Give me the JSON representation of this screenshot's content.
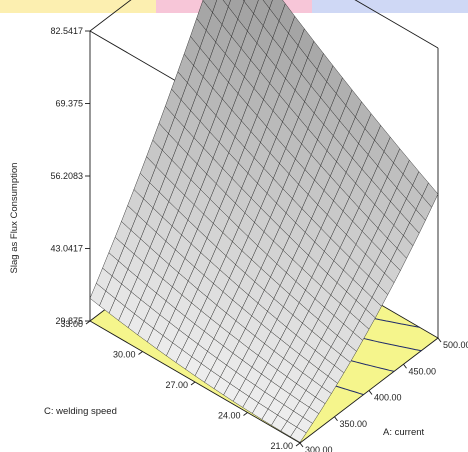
{
  "chart_data": {
    "type": "surface3d",
    "title": "",
    "zlabel": "Slag as Flux Consumption",
    "xlabel": "A: current",
    "ylabel": "C: welding speed",
    "x_ticks": [
      "300.00",
      "350.00",
      "400.00",
      "450.00",
      "500.00"
    ],
    "y_ticks": [
      "21.00",
      "24.00",
      "27.00",
      "30.00",
      "33.00"
    ],
    "z_ticks": [
      "29.875",
      "43.0417",
      "56.2083",
      "69.375",
      "82.5417"
    ],
    "x_range": [
      300,
      500
    ],
    "y_range": [
      21,
      33
    ],
    "z_range": [
      29.875,
      82.5417
    ],
    "corner_values": [
      {
        "current": 300,
        "welding_speed": 21,
        "slag": 30
      },
      {
        "current": 500,
        "welding_speed": 21,
        "slag": 56
      },
      {
        "current": 300,
        "welding_speed": 33,
        "slag": 34
      },
      {
        "current": 500,
        "welding_speed": 33,
        "slag": 82.5
      }
    ],
    "contour_levels": [
      40,
      46,
      52,
      58
    ],
    "floor_color": "#f5f58c",
    "banner_colors": [
      "#fcefb0",
      "#f7c6d8",
      "#cfd8f5"
    ]
  }
}
